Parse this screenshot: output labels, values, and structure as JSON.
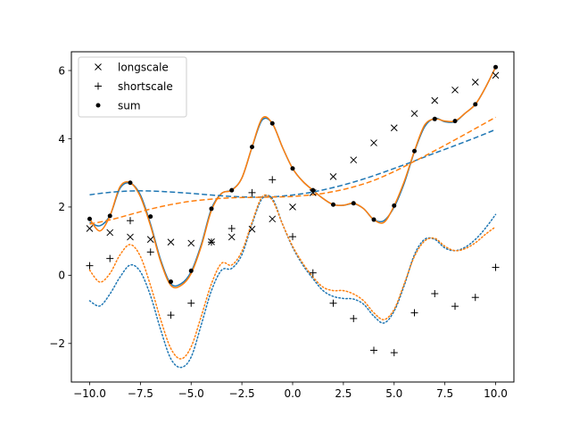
{
  "chart_data": {
    "type": "line",
    "title": "",
    "xlabel": "",
    "ylabel": "",
    "xlim": [
      -10.9,
      10.9
    ],
    "ylim": [
      -3.13,
      6.55
    ],
    "xticks": [
      -10.0,
      -7.5,
      -5.0,
      -2.5,
      0.0,
      2.5,
      5.0,
      7.5,
      10.0
    ],
    "xtick_labels": [
      "−10.0",
      "−7.5",
      "−5.0",
      "−2.5",
      "0.0",
      "2.5",
      "5.0",
      "7.5",
      "10.0"
    ],
    "yticks": [
      -2,
      0,
      2,
      4,
      6
    ],
    "ytick_labels": [
      "−2",
      "0",
      "2",
      "4",
      "6"
    ],
    "grid": false,
    "legend_position": "top-left",
    "colors": {
      "blue": "#1f77b4",
      "orange": "#ff7f0e",
      "marker": "#000000"
    },
    "scatter_x": [
      -10,
      -9,
      -8,
      -7,
      -6,
      -5,
      -4,
      -3,
      -2,
      -1,
      0,
      1,
      2,
      3,
      4,
      5,
      6,
      7,
      8,
      9,
      10
    ],
    "series": [
      {
        "name": "longscale",
        "kind": "scatter",
        "marker": "x",
        "values": [
          1.37,
          1.25,
          1.12,
          1.05,
          0.97,
          0.94,
          0.98,
          1.12,
          1.35,
          1.65,
          2.0,
          2.42,
          2.89,
          3.38,
          3.88,
          4.32,
          4.74,
          5.12,
          5.43,
          5.66,
          5.86
        ]
      },
      {
        "name": "shortscale",
        "kind": "scatter",
        "marker": "+",
        "values": [
          0.28,
          0.49,
          1.6,
          0.68,
          -1.17,
          -0.82,
          0.97,
          1.37,
          2.42,
          2.8,
          1.13,
          0.07,
          -0.82,
          -1.27,
          -2.2,
          -2.27,
          -1.1,
          -0.54,
          -0.91,
          -0.65,
          0.23
        ]
      },
      {
        "name": "sum",
        "kind": "scatter",
        "marker": "dot",
        "values": [
          1.65,
          1.74,
          2.71,
          1.72,
          -0.19,
          0.13,
          1.95,
          2.49,
          3.76,
          4.45,
          3.13,
          2.49,
          2.07,
          2.11,
          1.63,
          2.04,
          3.64,
          4.58,
          4.52,
          5.01,
          6.1
        ]
      }
    ],
    "curves": [
      {
        "color": "blue",
        "style": "solid",
        "x": [
          -10,
          -9.5,
          -9,
          -8.5,
          -8,
          -7.5,
          -7,
          -6.5,
          -6,
          -5.5,
          -5,
          -4.5,
          -4,
          -3.5,
          -3,
          -2.5,
          -2,
          -1.5,
          -1,
          -0.5,
          0,
          0.5,
          1,
          1.5,
          2,
          2.5,
          3,
          3.5,
          4,
          4.5,
          5,
          5.5,
          6,
          6.5,
          7,
          7.5,
          8,
          8.5,
          9,
          9.5,
          10
        ],
        "y": [
          1.55,
          1.45,
          1.75,
          2.55,
          2.7,
          2.35,
          1.5,
          0.45,
          -0.25,
          -0.25,
          0.1,
          0.9,
          1.95,
          2.4,
          2.5,
          2.85,
          3.75,
          4.55,
          4.45,
          3.75,
          3.13,
          2.75,
          2.49,
          2.25,
          2.07,
          2.05,
          2.1,
          1.95,
          1.63,
          1.6,
          2.0,
          2.7,
          3.62,
          4.35,
          4.6,
          4.5,
          4.5,
          4.75,
          5.01,
          5.5,
          6.1
        ]
      },
      {
        "color": "orange",
        "style": "solid",
        "x": [
          -10,
          -9.5,
          -9,
          -8.5,
          -8,
          -7.5,
          -7,
          -6.5,
          -6,
          -5.5,
          -5,
          -4.5,
          -4,
          -3.5,
          -3,
          -2.5,
          -2,
          -1.5,
          -1,
          -0.5,
          0,
          0.5,
          1,
          1.5,
          2,
          2.5,
          3,
          3.5,
          4,
          4.5,
          5,
          5.5,
          6,
          6.5,
          7,
          7.5,
          8,
          8.5,
          9,
          9.5,
          10
        ],
        "y": [
          1.65,
          1.3,
          1.74,
          2.6,
          2.71,
          2.3,
          1.45,
          0.4,
          -0.3,
          -0.3,
          0.05,
          0.85,
          1.9,
          2.4,
          2.49,
          2.85,
          3.76,
          4.6,
          4.45,
          3.75,
          3.13,
          2.75,
          2.49,
          2.25,
          2.07,
          2.05,
          2.11,
          1.95,
          1.63,
          1.55,
          2.04,
          2.75,
          3.64,
          4.4,
          4.58,
          4.52,
          4.52,
          4.75,
          5.01,
          5.5,
          6.1
        ]
      },
      {
        "color": "blue",
        "style": "dashed",
        "x": [
          -10,
          -9,
          -8,
          -7,
          -6,
          -5,
          -4,
          -3,
          -2,
          -1,
          0,
          1,
          2,
          3,
          4,
          5,
          6,
          7,
          8,
          9,
          10
        ],
        "y": [
          2.36,
          2.43,
          2.47,
          2.47,
          2.44,
          2.4,
          2.35,
          2.31,
          2.29,
          2.3,
          2.35,
          2.44,
          2.57,
          2.73,
          2.92,
          3.13,
          3.35,
          3.58,
          3.8,
          4.03,
          4.27
        ]
      },
      {
        "color": "orange",
        "style": "dashed",
        "x": [
          -10,
          -9,
          -8,
          -7,
          -6,
          -5,
          -4,
          -3,
          -2,
          -1,
          0,
          1,
          2,
          3,
          4,
          5,
          6,
          7,
          8,
          9,
          10
        ],
        "y": [
          1.5,
          1.62,
          1.78,
          1.94,
          2.07,
          2.17,
          2.23,
          2.27,
          2.28,
          2.29,
          2.31,
          2.36,
          2.45,
          2.59,
          2.78,
          3.04,
          3.34,
          3.65,
          3.97,
          4.3,
          4.63
        ]
      },
      {
        "color": "blue",
        "style": "dotted",
        "x": [
          -10,
          -9.5,
          -9,
          -8.5,
          -8,
          -7.5,
          -7,
          -6.5,
          -6,
          -5.5,
          -5,
          -4.5,
          -4,
          -3.5,
          -3,
          -2.5,
          -2,
          -1.5,
          -1,
          -0.5,
          0,
          0.5,
          1,
          1.5,
          2,
          2.5,
          3,
          3.5,
          4,
          4.5,
          5,
          5.5,
          6,
          6.5,
          7,
          7.5,
          8,
          8.5,
          9,
          9.5,
          10
        ],
        "y": [
          -0.75,
          -0.9,
          -0.55,
          -0.05,
          0.3,
          0.1,
          -0.6,
          -1.6,
          -2.45,
          -2.7,
          -2.4,
          -1.45,
          -0.45,
          0.15,
          0.2,
          0.6,
          1.5,
          2.25,
          2.25,
          1.5,
          0.82,
          0.3,
          -0.1,
          -0.45,
          -0.62,
          -0.68,
          -0.7,
          -0.85,
          -1.2,
          -1.4,
          -1.05,
          -0.3,
          0.6,
          1.05,
          1.05,
          0.8,
          0.72,
          0.82,
          1.05,
          1.38,
          1.78
        ]
      },
      {
        "color": "orange",
        "style": "dotted",
        "x": [
          -10,
          -9.5,
          -9,
          -8.5,
          -8,
          -7.5,
          -7,
          -6.5,
          -6,
          -5.5,
          -5,
          -4.5,
          -4,
          -3.5,
          -3,
          -2.5,
          -2,
          -1.5,
          -1,
          -0.5,
          0,
          0.5,
          1,
          1.5,
          2,
          2.5,
          3,
          3.5,
          4,
          4.5,
          5,
          5.5,
          6,
          6.5,
          7,
          7.5,
          8,
          8.5,
          9,
          9.5,
          10
        ],
        "y": [
          0.15,
          -0.2,
          0.05,
          0.6,
          0.9,
          0.55,
          -0.3,
          -1.3,
          -2.15,
          -2.45,
          -2.1,
          -1.2,
          -0.25,
          0.35,
          0.3,
          0.7,
          1.55,
          2.3,
          2.2,
          1.5,
          0.85,
          0.35,
          -0.05,
          -0.35,
          -0.45,
          -0.45,
          -0.55,
          -0.75,
          -1.1,
          -1.3,
          -1.0,
          -0.25,
          0.55,
          1.0,
          1.08,
          0.85,
          0.72,
          0.78,
          0.95,
          1.2,
          1.42
        ]
      }
    ]
  }
}
